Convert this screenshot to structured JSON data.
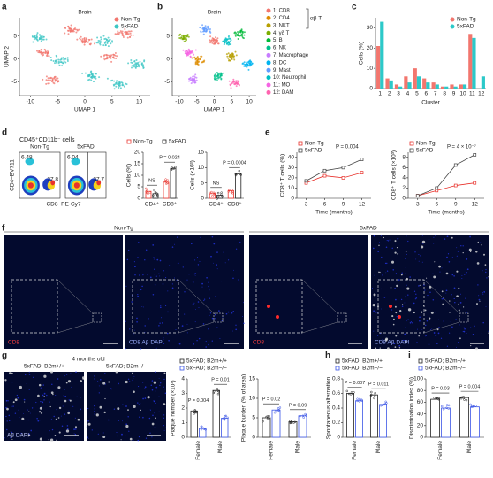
{
  "letters": [
    "a",
    "b",
    "c",
    "d",
    "e",
    "f",
    "g",
    "h",
    "i"
  ],
  "flow": {
    "header": "CD45⁺CD11b⁻ cells",
    "groups": [
      "Non-Tg",
      "5xFAD"
    ],
    "ylabel": "CD4–BV711",
    "xlabel": "CD8–PE-Cy7",
    "quadrants": [
      [
        "6.48",
        "27.8"
      ],
      [
        "6.04",
        "37.7"
      ]
    ]
  },
  "imaging": {
    "groups": [
      "Non-Tg",
      "5xFAD"
    ],
    "stains": [
      "CD8",
      "CD8 Aβ DAPI"
    ]
  },
  "plaque": {
    "age": "4 months old",
    "genotypes": [
      "5xFAD; B2m+/+",
      "5xFAD; B2m−/−"
    ],
    "stain": "Aβ DAPI"
  },
  "chart_data": [
    {
      "type": "umap",
      "title": "Brain",
      "xlabel": "UMAP 1",
      "ylabel": "UMAP 2",
      "xlim": [
        -12,
        12
      ],
      "ylim": [
        -8,
        9
      ],
      "xticks": [
        -10,
        -5,
        0,
        5,
        10
      ],
      "yticks": [
        -5,
        0,
        5
      ],
      "legend": "top-right",
      "series": [
        {
          "name": "Non-Tg",
          "color": "#f2766e"
        },
        {
          "name": "5xFAD",
          "color": "#3cc6c4"
        }
      ]
    },
    {
      "type": "umap",
      "title": "Brain",
      "xlabel": "UMAP 1",
      "xlim": [
        -12,
        12
      ],
      "ylim": [
        -8,
        9
      ],
      "xticks": [
        -10,
        -5,
        0,
        5,
        10
      ],
      "yticks": [
        -5,
        0,
        5
      ],
      "legend": "right",
      "group_label": "αβ T",
      "series": [
        {
          "name": "1: CD8",
          "color": "#f2766e"
        },
        {
          "name": "2: CD4",
          "color": "#de8c00"
        },
        {
          "name": "3: NKT",
          "color": "#b79f00"
        },
        {
          "name": "4: γδ T",
          "color": "#7cae00"
        },
        {
          "name": "5: B",
          "color": "#00ba38"
        },
        {
          "name": "6: NK",
          "color": "#00c08b"
        },
        {
          "name": "7: Macrophage",
          "color": "#c77cff"
        },
        {
          "name": "8: DC",
          "color": "#00b4f0"
        },
        {
          "name": "9: Mast",
          "color": "#619cff"
        },
        {
          "name": "10: Neutrophil",
          "color": "#00bfc4"
        },
        {
          "name": "11: MO",
          "color": "#f564e3"
        },
        {
          "name": "12: DAM",
          "color": "#ff64b0"
        }
      ]
    },
    {
      "type": "bar",
      "ylabel": "Cells (%)",
      "xlabel": "Cluster",
      "categories": [
        "1",
        "2",
        "3",
        "4",
        "5",
        "6",
        "7",
        "8",
        "9",
        "10",
        "11",
        "12"
      ],
      "ylim": [
        0,
        35
      ],
      "yticks": [
        0,
        10,
        20,
        30
      ],
      "legend": "top-right",
      "series": [
        {
          "name": "Non-Tg",
          "color": "#f2766e",
          "values": [
            21,
            5,
            2,
            6,
            10,
            5,
            3,
            1,
            2,
            2,
            27,
            0
          ]
        },
        {
          "name": "5xFAD",
          "color": "#2cc9c9",
          "values": [
            33,
            4,
            1,
            3,
            6,
            3,
            2,
            1,
            1,
            2,
            25,
            6
          ]
        }
      ]
    },
    {
      "type": "dotbar",
      "ylabel": "Cells (%)",
      "categories": [
        "CD4⁺",
        "CD8⁺"
      ],
      "ylim": [
        0,
        20
      ],
      "yticks": [
        0,
        5,
        10,
        15,
        20
      ],
      "legend": "top",
      "annotations": [
        "NS",
        "P = 0.024"
      ],
      "series": [
        {
          "name": "Non-Tg",
          "color": "#e8322c",
          "values": [
            3,
            7
          ]
        },
        {
          "name": "5xFAD",
          "color": "#222222",
          "values": [
            2,
            13
          ]
        }
      ]
    },
    {
      "type": "dotbar",
      "ylabel": "Cells (×10³)",
      "categories": [
        "CD4⁺",
        "CD8⁺"
      ],
      "ylim": [
        0,
        15
      ],
      "yticks": [
        0,
        5,
        10,
        15
      ],
      "annotations": [
        "NS",
        "P = 0.0004"
      ],
      "series": [
        {
          "name": "Non-Tg",
          "color": "#e8322c",
          "values": [
            1.5,
            2.5
          ]
        },
        {
          "name": "5xFAD",
          "color": "#222222",
          "values": [
            1,
            8
          ]
        }
      ]
    },
    {
      "type": "line",
      "ylabel": "CD8⁺ T cells (%)",
      "xlabel": "Time (months)",
      "x": [
        3,
        6,
        9,
        12
      ],
      "xlim": [
        1.5,
        13.5
      ],
      "xticks": [
        3,
        6,
        9,
        12
      ],
      "ylim": [
        0,
        45
      ],
      "yticks": [
        0,
        10,
        20,
        30,
        40
      ],
      "legend": "top",
      "annotation": "P = 0.004",
      "series": [
        {
          "name": "Non-Tg",
          "color": "#e8322c",
          "values": [
            15,
            22,
            20,
            25
          ]
        },
        {
          "name": "5xFAD",
          "color": "#444444",
          "values": [
            17,
            27,
            30,
            38
          ]
        }
      ]
    },
    {
      "type": "line",
      "ylabel": "CD8⁺ T cells (×10³)",
      "xlabel": "Time (months)",
      "x": [
        3,
        6,
        9,
        12
      ],
      "xlim": [
        1.5,
        13.5
      ],
      "xticks": [
        3,
        6,
        9,
        12
      ],
      "ylim": [
        0,
        9
      ],
      "yticks": [
        0,
        2,
        4,
        6,
        8
      ],
      "legend": "top",
      "annotation": "P = 4 × 10⁻⁷",
      "series": [
        {
          "name": "Non-Tg",
          "color": "#e8322c",
          "values": [
            0.5,
            1.5,
            2.5,
            3
          ]
        },
        {
          "name": "5xFAD",
          "color": "#444444",
          "values": [
            0.5,
            2,
            6.5,
            8.5
          ]
        }
      ]
    },
    {
      "type": "dotbar",
      "ylabel": "Plaque number (×10³)",
      "categories": [
        "Female",
        "Male"
      ],
      "ylim": [
        0,
        4
      ],
      "yticks": [
        0,
        1,
        2,
        3,
        4
      ],
      "legend": "top",
      "annotations": [
        "P = 0.004",
        "P = 0.01"
      ],
      "series": [
        {
          "name": "5xFAD; B2m+/+",
          "color": "#222222",
          "values": [
            1.8,
            3.2
          ]
        },
        {
          "name": "5xFAD; B2m−/−",
          "color": "#3b55e6",
          "values": [
            0.6,
            1.3
          ]
        }
      ]
    },
    {
      "type": "dotbar",
      "ylabel": "Plaque burden (% of area)",
      "categories": [
        "Female",
        "Male"
      ],
      "ylim": [
        0,
        15
      ],
      "yticks": [
        0,
        5,
        10,
        15
      ],
      "annotations": [
        "P = 0.02",
        "P = 0.09"
      ],
      "series": [
        {
          "name": "5xFAD; B2m+/+",
          "color": "#222222",
          "values": [
            5,
            4
          ]
        },
        {
          "name": "5xFAD; B2m−/−",
          "color": "#3b55e6",
          "values": [
            7,
            5.5
          ]
        }
      ]
    },
    {
      "type": "dotbar",
      "ylabel": "Spontaneous alternation",
      "categories": [
        "Female",
        "Male"
      ],
      "ylim": [
        0,
        0.8
      ],
      "yticks": [
        0,
        0.2,
        0.4,
        0.6,
        0.8
      ],
      "legend": "top",
      "annotations": [
        "P = 0.007",
        "P = 0.011"
      ],
      "series": [
        {
          "name": "5xFAD; B2m+/+",
          "color": "#222222",
          "values": [
            0.6,
            0.58
          ]
        },
        {
          "name": "5xFAD; B2m−/−",
          "color": "#3b55e6",
          "values": [
            0.5,
            0.45
          ]
        }
      ]
    },
    {
      "type": "dotbar",
      "ylabel": "Discrimination index (%)",
      "categories": [
        "Female",
        "Male"
      ],
      "ylim": [
        0,
        100
      ],
      "yticks": [
        0,
        20,
        40,
        60,
        80,
        100
      ],
      "legend": "top",
      "annotations": [
        "P = 0.03",
        "P = 0.004"
      ],
      "series": [
        {
          "name": "5xFAD; B2m+/+",
          "color": "#222222",
          "values": [
            65,
            68
          ]
        },
        {
          "name": "5xFAD; B2m−/−",
          "color": "#3b55e6",
          "values": [
            50,
            52
          ]
        }
      ]
    }
  ]
}
